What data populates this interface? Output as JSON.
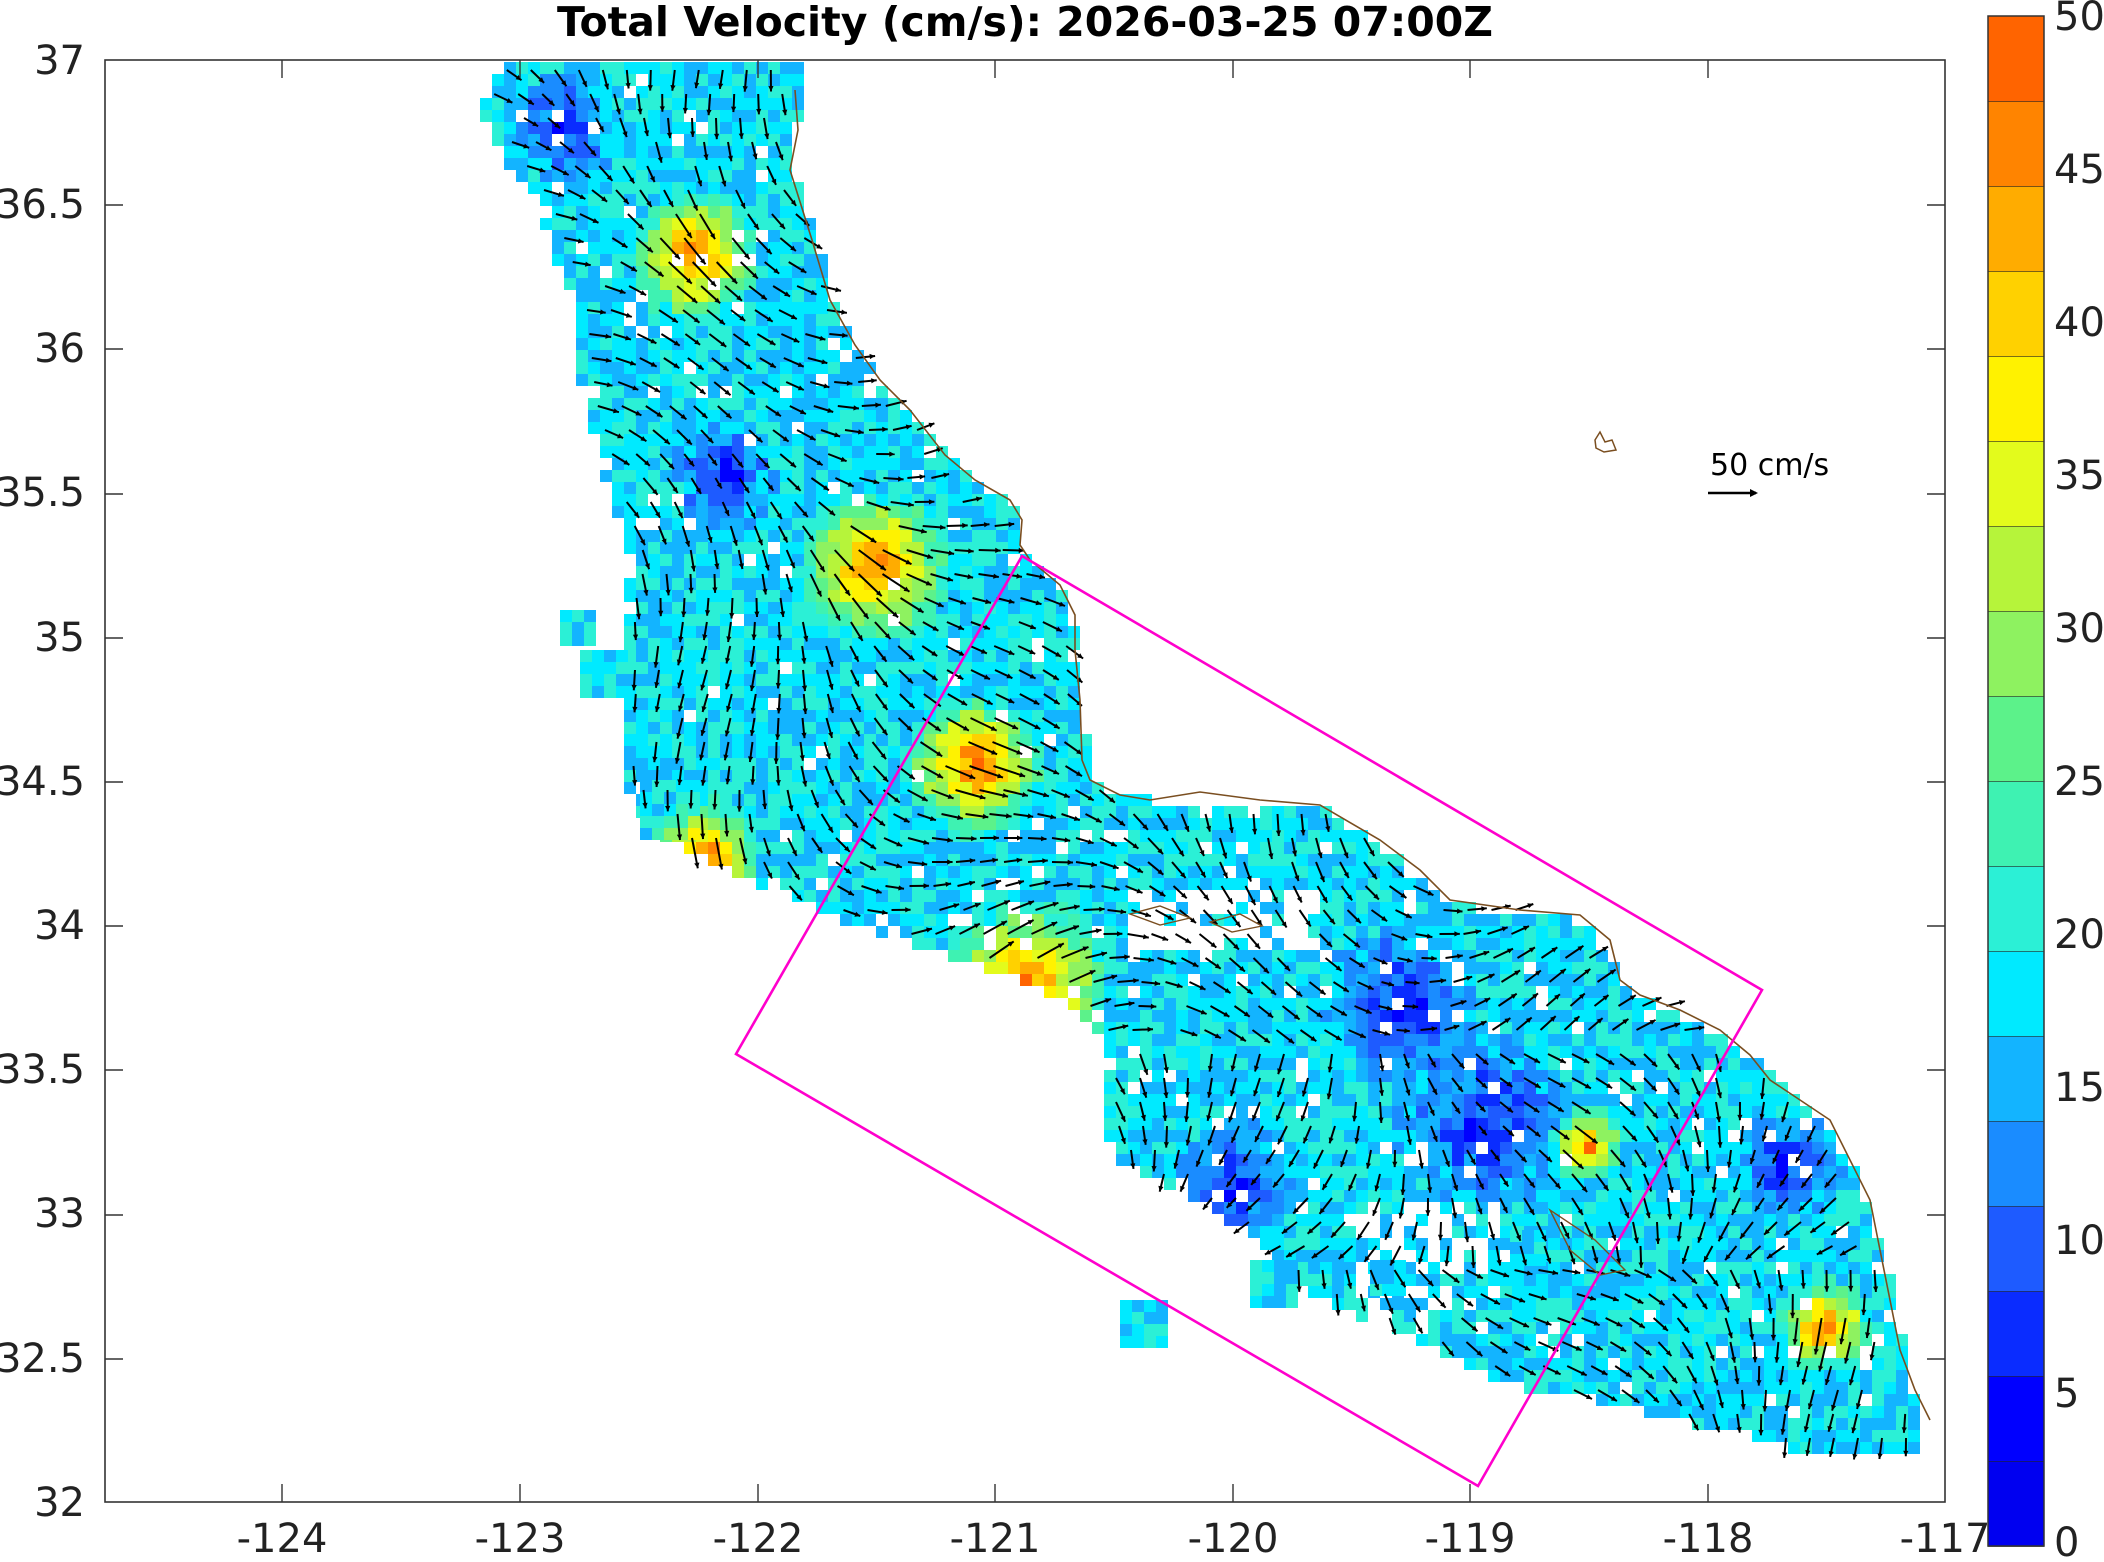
{
  "title": "Total Velocity (cm/s): 2026-03-25 07:00Z",
  "x_ticks": [
    "-124",
    "-123",
    "-122",
    "-121",
    "-120",
    "-119",
    "-118",
    "-117"
  ],
  "y_ticks": [
    "37",
    "36.5",
    "36",
    "35.5",
    "35",
    "34.5",
    "34",
    "33.5",
    "33",
    "32.5",
    "32"
  ],
  "colorbar": {
    "labels": [
      "50",
      "45",
      "40",
      "35",
      "30",
      "25",
      "20",
      "15",
      "10",
      "5",
      "0"
    ],
    "colors": [
      "#0000f0",
      "#0000ff",
      "#0a2cff",
      "#1e5bff",
      "#1a8cff",
      "#13b4ff",
      "#00eaff",
      "#2bf0d6",
      "#3ef2b2",
      "#5cf28a",
      "#8ef260",
      "#b6f43a",
      "#e3fb1c",
      "#fff200",
      "#ffd100",
      "#ffac00",
      "#ff8400",
      "#ff6400"
    ]
  },
  "reference_vector": {
    "label": "50 cm/s"
  },
  "domain_box_color": "#ff00cc"
}
